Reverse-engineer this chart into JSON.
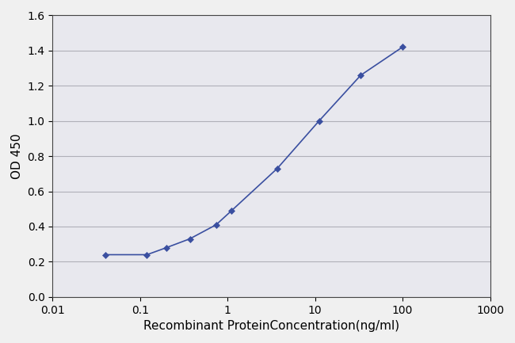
{
  "x_data": [
    0.04,
    0.12,
    0.2,
    0.37,
    0.74,
    1.11,
    3.7,
    11.1,
    33.3,
    100
  ],
  "y_data": [
    0.24,
    0.24,
    0.28,
    0.33,
    0.41,
    0.49,
    0.73,
    1.0,
    1.26,
    1.42
  ],
  "xlim": [
    0.01,
    1000
  ],
  "ylim": [
    0,
    1.6
  ],
  "yticks": [
    0,
    0.2,
    0.4,
    0.6,
    0.8,
    1.0,
    1.2,
    1.4,
    1.6
  ],
  "xticks": [
    0.01,
    0.1,
    1,
    10,
    100,
    1000
  ],
  "xtick_labels": [
    "0.01",
    "0.1",
    "1",
    "10",
    "100",
    "1000"
  ],
  "xlabel": "Recombinant ProteinConcentration(ng/ml)",
  "ylabel": "OD 450",
  "line_color": "#3a4fa0",
  "marker": "D",
  "marker_size": 4,
  "line_width": 1.2,
  "fig_bg_color": "#f0f0f0",
  "plot_bg_color": "#e8e8ee",
  "grid_color": "#b0b0b8",
  "font_size": 10,
  "label_fontsize": 11
}
